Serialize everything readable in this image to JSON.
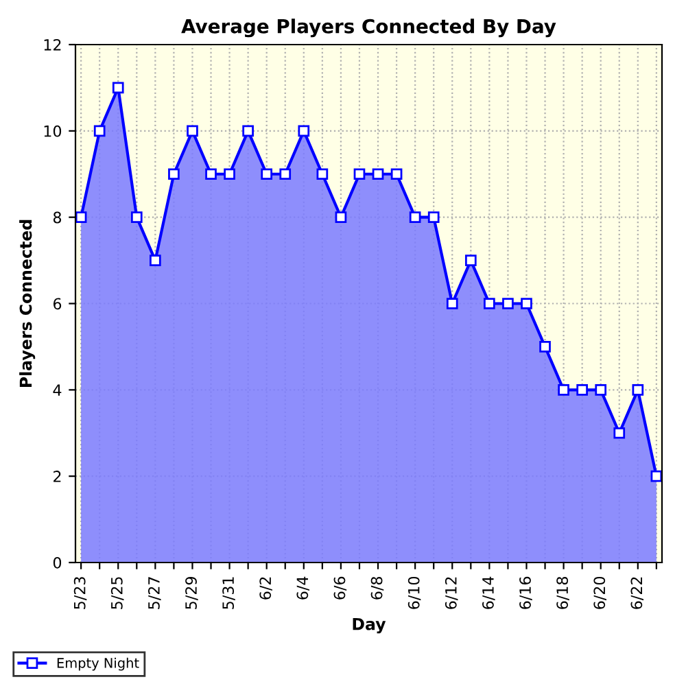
{
  "chart_data": {
    "type": "area",
    "title": "Average Players Connected By Day",
    "xlabel": "Day",
    "ylabel": "Players Connected",
    "categories": [
      "5/23",
      null,
      "5/25",
      null,
      "5/27",
      null,
      "5/29",
      null,
      "5/31",
      null,
      "6/2",
      null,
      "6/4",
      null,
      "6/6",
      null,
      "6/8",
      null,
      "6/10",
      null,
      "6/12",
      null,
      "6/14",
      null,
      "6/16",
      null,
      "6/18",
      null,
      "6/20",
      null,
      "6/22",
      null
    ],
    "series": [
      {
        "name": "Empty Night",
        "color": "#0000ff",
        "values": [
          8,
          10,
          11,
          8,
          7,
          9,
          10,
          9,
          9,
          10,
          9,
          9,
          10,
          9,
          8,
          9,
          9,
          9,
          8,
          8,
          6,
          7,
          6,
          6,
          6,
          5,
          4,
          4,
          4,
          3,
          4,
          2
        ]
      }
    ],
    "ylim": [
      0,
      12
    ],
    "yticks": [
      0,
      2,
      4,
      6,
      8,
      10,
      12
    ],
    "grid": true,
    "legend": "bottom left",
    "marker": "square",
    "line_style": "solid"
  }
}
